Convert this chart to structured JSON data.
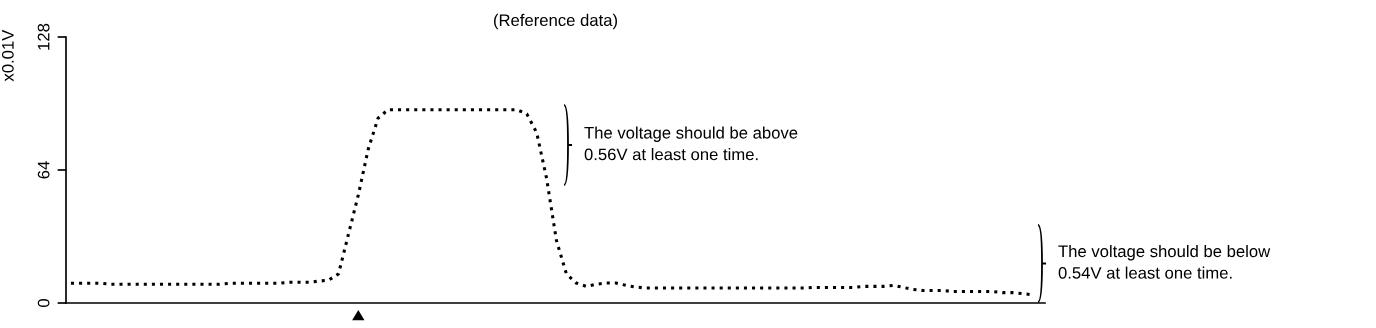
{
  "chart_data": {
    "type": "line",
    "title": "(Reference data)",
    "ylabel": "x0.01V",
    "categories": [
      null,
      null,
      null,
      null,
      null,
      null,
      null,
      null,
      null,
      null,
      null,
      null,
      null,
      null,
      null,
      null,
      null,
      null,
      null,
      null,
      null,
      null,
      null,
      null,
      null,
      null,
      null,
      null,
      null,
      null,
      null,
      null,
      null,
      null,
      null,
      null,
      null,
      null,
      null,
      null,
      null,
      null,
      null,
      null,
      null,
      null,
      null,
      null,
      null,
      null,
      null,
      null,
      null,
      null,
      null,
      null,
      null,
      null,
      null,
      null,
      null,
      null,
      null,
      null,
      null,
      null,
      null,
      null,
      null,
      null,
      null,
      null,
      null,
      null,
      null,
      null,
      null,
      null,
      null,
      null,
      null,
      null,
      null,
      null,
      null,
      null,
      null,
      null,
      null,
      null,
      null,
      null,
      null,
      null,
      null,
      null,
      null,
      null
    ],
    "series": [
      {
        "color": "#000000",
        "values": [
          9.5,
          9.5,
          9.5,
          9.5,
          9,
          9,
          9,
          9,
          9,
          9,
          9,
          9,
          9,
          9,
          9,
          9,
          9.5,
          9.5,
          9.5,
          9.5,
          9.5,
          9.5,
          10,
          10,
          10,
          10.5,
          11,
          14,
          33,
          52,
          74,
          89,
          93,
          93,
          93,
          93,
          93,
          93,
          93,
          93,
          93,
          93,
          93,
          93,
          93,
          93,
          91,
          82,
          60,
          30,
          14,
          9.6,
          8,
          9,
          9.6,
          9.6,
          8.5,
          7.7,
          7.2,
          7.2,
          7.2,
          7.2,
          7.2,
          7.2,
          7.2,
          7.2,
          7.2,
          7.2,
          7.2,
          7.2,
          7.2,
          7.2,
          7.2,
          7.2,
          7.2,
          7.5,
          7.5,
          7.5,
          7.5,
          7.5,
          8,
          8,
          8,
          8.5,
          7.5,
          6.5,
          6,
          6,
          6,
          5.5,
          5.5,
          5.5,
          5.5,
          5.5,
          5,
          5,
          4.5,
          4
        ]
      }
    ],
    "ylim": [
      0,
      128
    ],
    "yticks": [
      0,
      64,
      128
    ],
    "tick_labels": "y",
    "grid": false,
    "legend": false,
    "marker": "none",
    "line_style": "dotted",
    "annotations": [
      "The voltage should be above\n0.56V at least one time.",
      "The voltage should be below\n0.54V at least one time."
    ]
  }
}
